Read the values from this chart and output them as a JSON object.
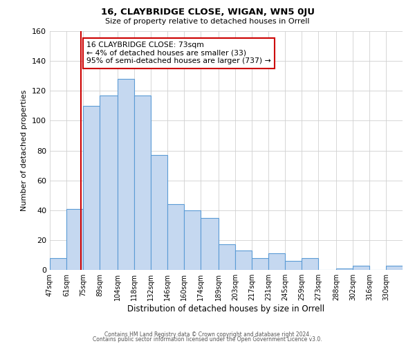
{
  "title": "16, CLAYBRIDGE CLOSE, WIGAN, WN5 0JU",
  "subtitle": "Size of property relative to detached houses in Orrell",
  "xlabel": "Distribution of detached houses by size in Orrell",
  "ylabel": "Number of detached properties",
  "bar_labels": [
    "47sqm",
    "61sqm",
    "75sqm",
    "89sqm",
    "104sqm",
    "118sqm",
    "132sqm",
    "146sqm",
    "160sqm",
    "174sqm",
    "189sqm",
    "203sqm",
    "217sqm",
    "231sqm",
    "245sqm",
    "259sqm",
    "273sqm",
    "288sqm",
    "302sqm",
    "316sqm",
    "330sqm"
  ],
  "bar_heights": [
    8,
    41,
    110,
    117,
    128,
    117,
    77,
    44,
    40,
    35,
    17,
    13,
    8,
    11,
    6,
    8,
    0,
    1,
    3,
    0,
    3
  ],
  "bar_edges": [
    47,
    61,
    75,
    89,
    104,
    118,
    132,
    146,
    160,
    174,
    189,
    203,
    217,
    231,
    245,
    259,
    273,
    288,
    302,
    316,
    330,
    344
  ],
  "bar_color": "#c5d8f0",
  "bar_edge_color": "#5b9bd5",
  "property_size": 73,
  "vline_color": "#cc0000",
  "annotation_text": "16 CLAYBRIDGE CLOSE: 73sqm\n← 4% of detached houses are smaller (33)\n95% of semi-detached houses are larger (737) →",
  "annotation_box_color": "#ffffff",
  "annotation_box_edge": "#cc0000",
  "ylim": [
    0,
    160
  ],
  "yticks": [
    0,
    20,
    40,
    60,
    80,
    100,
    120,
    140,
    160
  ],
  "footer_line1": "Contains HM Land Registry data © Crown copyright and database right 2024.",
  "footer_line2": "Contains public sector information licensed under the Open Government Licence v3.0.",
  "bg_color": "#ffffff",
  "grid_color": "#d0d0d0"
}
